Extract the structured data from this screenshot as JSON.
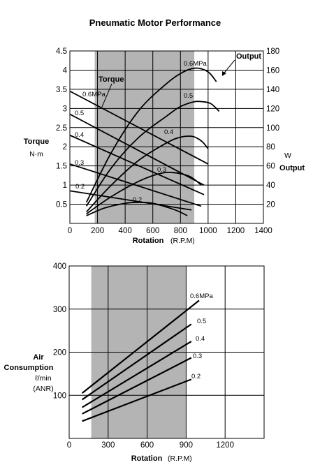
{
  "figure_title": "Pneumatic Motor Performance",
  "chart_data": [
    {
      "type": "line",
      "title": "Pneumatic Motor Performance",
      "xlabel": "Rotation",
      "xunit": "(R.P.M)",
      "ylabel_left": [
        "Torque",
        "N·m"
      ],
      "ylabel_right": [
        "W",
        "Output"
      ],
      "xlim": [
        0,
        1400
      ],
      "ylim_left": [
        0,
        4.5
      ],
      "ylim_right": [
        0,
        180
      ],
      "xticks": [
        "0",
        "200",
        "400",
        "600",
        "800",
        "1000",
        "1200",
        "1400"
      ],
      "yticks_left": [
        "0.5",
        "1",
        "1.5",
        "2",
        "2.5",
        "3",
        "3.5",
        "4",
        "4.5"
      ],
      "yticks_right": [
        "20",
        "40",
        "60",
        "80",
        "100",
        "120",
        "140",
        "160",
        "180"
      ],
      "shaded_range": [
        180,
        900
      ],
      "grid": true,
      "group_labels": [
        "Torque",
        "Output"
      ],
      "torque_series": [
        {
          "name": "0.6MPa",
          "x": [
            0,
            1000
          ],
          "y": [
            3.45,
            1.55
          ]
        },
        {
          "name": "0.5",
          "x": [
            0,
            970
          ],
          "y": [
            2.85,
            1.0
          ]
        },
        {
          "name": "0.4",
          "x": [
            0,
            970
          ],
          "y": [
            2.3,
            0.75
          ]
        },
        {
          "name": "0.3",
          "x": [
            0,
            950
          ],
          "y": [
            1.55,
            0.45
          ]
        },
        {
          "name": "0.2",
          "x": [
            0,
            880
          ],
          "y": [
            0.85,
            0.35
          ]
        }
      ],
      "output_series": [
        {
          "name": "0.6MPa",
          "x": [
            120,
            300,
            500,
            700,
            820,
            900,
            960,
            1010,
            1060
          ],
          "y": [
            22,
            74,
            118,
            146,
            158,
            162,
            161,
            157,
            148
          ]
        },
        {
          "name": "0.5",
          "x": [
            120,
            300,
            500,
            700,
            800,
            900,
            960,
            1020,
            1080
          ],
          "y": [
            18,
            58,
            90,
            112,
            122,
            127,
            127,
            125,
            117
          ]
        },
        {
          "name": "0.4",
          "x": [
            120,
            300,
            500,
            700,
            800,
            880,
            920,
            960,
            1000
          ],
          "y": [
            12,
            40,
            66,
            84,
            90,
            91,
            89,
            85,
            78
          ]
        },
        {
          "name": "0.3",
          "x": [
            120,
            300,
            500,
            650,
            750,
            850,
            900,
            950
          ],
          "y": [
            10,
            28,
            44,
            52,
            53,
            50,
            46,
            40
          ]
        },
        {
          "name": "0.2",
          "x": [
            120,
            250,
            400,
            500,
            600,
            700,
            780,
            850
          ],
          "y": [
            8,
            16,
            21,
            22,
            21,
            17,
            13,
            8
          ]
        }
      ]
    },
    {
      "type": "line",
      "xlabel": "Rotation",
      "xunit": "(R.P.M)",
      "ylabel": [
        "Air",
        "Consumption",
        "ℓ/min",
        "(ANR)"
      ],
      "xlim": [
        0,
        1500
      ],
      "ylim": [
        0,
        400
      ],
      "xticks": [
        "0",
        "300",
        "600",
        "900",
        "1200"
      ],
      "yticks": [
        "100",
        "200",
        "300",
        "400"
      ],
      "shaded_range": [
        170,
        900
      ],
      "grid": true,
      "series": [
        {
          "name": "0.6MPa",
          "x": [
            100,
            1000
          ],
          "y": [
            105,
            320
          ]
        },
        {
          "name": "0.5",
          "x": [
            100,
            940
          ],
          "y": [
            90,
            265
          ]
        },
        {
          "name": "0.4",
          "x": [
            100,
            940
          ],
          "y": [
            72,
            225
          ]
        },
        {
          "name": "0.3",
          "x": [
            100,
            940
          ],
          "y": [
            57,
            187
          ]
        },
        {
          "name": "0.2",
          "x": [
            100,
            940
          ],
          "y": [
            40,
            137
          ]
        }
      ]
    }
  ]
}
